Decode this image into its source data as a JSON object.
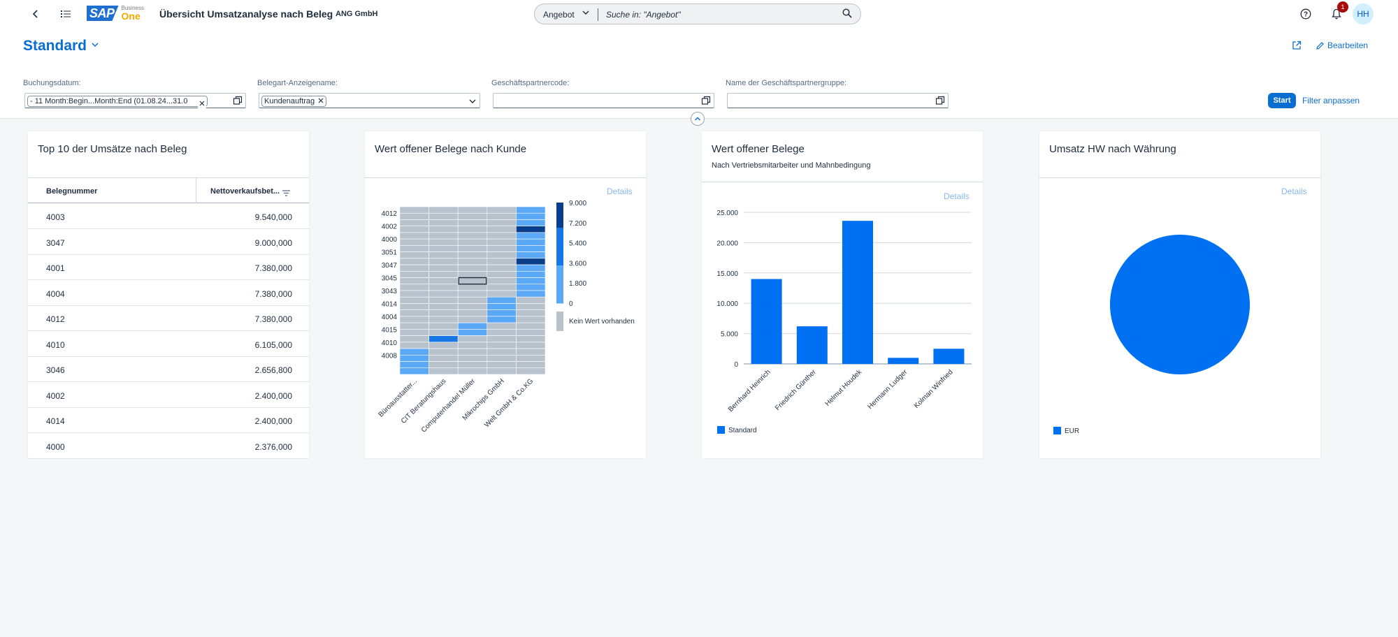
{
  "shell": {
    "brand_sap": "SAP",
    "brand_line1": "Business",
    "brand_line2": "One",
    "app_title": "Übersicht Umsatzanalyse nach Beleg",
    "company": "ANG GmbH",
    "search_scope": "Angebot",
    "search_placeholder": "Suche in: \"Angebot\"",
    "notification_count": "1",
    "avatar_initials": "HH"
  },
  "header": {
    "variant": "Standard",
    "edit_label": "Bearbeiten",
    "filters": [
      {
        "label": "Buchungsdatum:",
        "token": "- 11 Month:Begin...Month:End (01.08.24...31.0"
      },
      {
        "label": "Belegart-Anzeigename:",
        "token": "Kundenauftrag"
      },
      {
        "label": "Geschäftspartnercode:",
        "token": ""
      },
      {
        "label": "Name der Geschäftspartnergruppe:",
        "token": ""
      }
    ],
    "start_label": "Start",
    "adapt_label": "Filter anpassen"
  },
  "card_top10": {
    "title": "Top 10 der Umsätze nach Beleg",
    "col1": "Belegnummer",
    "col2": "Nettoverkaufsbet...",
    "rows": [
      {
        "doc": "4003",
        "amount": "9.540,000"
      },
      {
        "doc": "3047",
        "amount": "9.000,000"
      },
      {
        "doc": "4001",
        "amount": "7.380,000"
      },
      {
        "doc": "4004",
        "amount": "7.380,000"
      },
      {
        "doc": "4012",
        "amount": "7.380,000"
      },
      {
        "doc": "4010",
        "amount": "6.105,000"
      },
      {
        "doc": "3046",
        "amount": "2.656,800"
      },
      {
        "doc": "4002",
        "amount": "2.400,000"
      },
      {
        "doc": "4014",
        "amount": "2.400,000"
      },
      {
        "doc": "4000",
        "amount": "2.376,000"
      }
    ]
  },
  "card_heatmap": {
    "title": "Wert offener Belege nach Kunde",
    "details": "Details"
  },
  "card_bar": {
    "title": "Wert offener Belege",
    "subtitle": "Nach Vertriebsmitarbeiter und Mahnbedingung",
    "details": "Details"
  },
  "card_pie": {
    "title": "Umsatz HW nach Währung",
    "details": "Details"
  },
  "colors": {
    "accent": "#0a6ed1",
    "bar": "#0070f2",
    "empty": "#b8c2cc",
    "heat_low": "#5ba8f7",
    "heat_mid": "#1877e6",
    "heat_high": "#0b3e8a"
  },
  "chart_data": [
    {
      "type": "heatmap",
      "title": "Wert offener Belege nach Kunde",
      "x_categories": [
        "Büroausstatter...",
        "CIT Beratungshaus",
        "Computerhandel Müller",
        "Mikrochips GmbH",
        "Welt GmbH & Co.KG"
      ],
      "y_categories": [
        "4012",
        "4002",
        "4000",
        "3051",
        "3047",
        "3045",
        "3043",
        "4014",
        "4004",
        "4015",
        "4010",
        "4008"
      ],
      "y_rows": [
        "4012",
        "",
        "4002",
        "",
        "4000",
        "",
        "3051",
        "",
        "3047",
        "",
        "3045",
        "",
        "3043",
        "",
        "4014",
        "",
        "4004",
        "",
        "4015",
        "",
        "4010",
        "",
        "4008",
        "",
        "",
        ""
      ],
      "matrix": [
        [
          null,
          null,
          null,
          null,
          1800
        ],
        [
          null,
          null,
          null,
          null,
          2400
        ],
        [
          null,
          null,
          null,
          null,
          2400
        ],
        [
          null,
          null,
          null,
          null,
          7380
        ],
        [
          null,
          null,
          null,
          null,
          2376
        ],
        [
          null,
          null,
          null,
          null,
          1800
        ],
        [
          null,
          null,
          null,
          null,
          2200
        ],
        [
          null,
          null,
          null,
          null,
          2100
        ],
        [
          null,
          null,
          null,
          null,
          9000
        ],
        [
          null,
          null,
          null,
          null,
          2400
        ],
        [
          null,
          null,
          null,
          null,
          2000
        ],
        [
          null,
          null,
          null,
          null,
          1900
        ],
        [
          null,
          null,
          null,
          null,
          2300
        ],
        [
          null,
          null,
          null,
          null,
          2200
        ],
        [
          null,
          null,
          null,
          2400,
          null
        ],
        [
          null,
          null,
          null,
          2100,
          null
        ],
        [
          null,
          null,
          null,
          2300,
          null
        ],
        [
          null,
          null,
          null,
          2000,
          null
        ],
        [
          null,
          null,
          1900,
          null,
          null
        ],
        [
          null,
          null,
          2100,
          null,
          null
        ],
        [
          null,
          6105,
          null,
          null,
          null
        ],
        [
          null,
          null,
          null,
          null,
          null
        ],
        [
          2300,
          null,
          null,
          null,
          null
        ],
        [
          2100,
          null,
          null,
          null,
          null
        ],
        [
          2000,
          null,
          null,
          null,
          null
        ],
        [
          1900,
          null,
          null,
          null,
          null
        ]
      ],
      "legend_ticks": [
        "9.000",
        "7.200",
        "5.400",
        "3.600",
        "1.800",
        "0"
      ],
      "legend_min": 0,
      "legend_max": 9000,
      "no_value_label": "Kein Wert vorhanden"
    },
    {
      "type": "bar",
      "title": "Wert offener Belege",
      "categories": [
        "Bernhard Heinrich",
        "Friedrich Günther",
        "Helmut Houdek",
        "Hermann Ludger",
        "Kolman Winfried"
      ],
      "series": [
        {
          "name": "Standard",
          "values": [
            14000,
            6200,
            23600,
            1000,
            2500
          ]
        }
      ],
      "ylim": [
        0,
        25000
      ],
      "y_ticks": [
        0,
        5000,
        10000,
        15000,
        20000,
        25000
      ],
      "y_tick_labels": [
        "0",
        "5.000",
        "10.000",
        "15.000",
        "20.000",
        "25.000"
      ],
      "legend_label": "Standard"
    },
    {
      "type": "pie",
      "title": "Umsatz HW nach Währung",
      "slices": [
        {
          "label": "EUR",
          "value": 100
        }
      ],
      "legend_label": "EUR"
    }
  ]
}
